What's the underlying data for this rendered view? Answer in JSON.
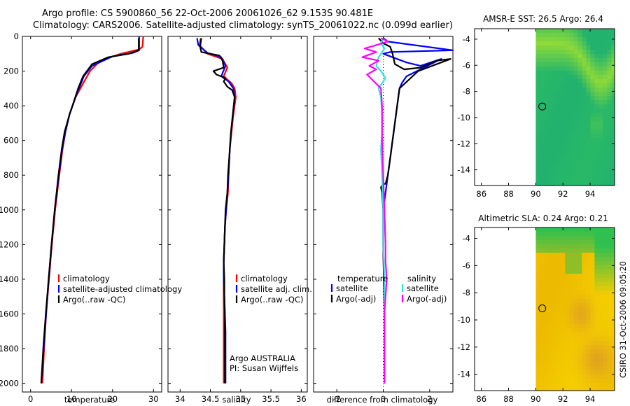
{
  "header": {
    "line1": "Argo profile: CS 5900860_56 22-Oct-2006 20061026_62 9.153S 90.481E",
    "line2": "Climatology: CARS2006. Satellite-adjusted climatology: synTS_20061022.nc (0.099d earlier)"
  },
  "colors": {
    "red": "#ff0000",
    "blue": "#0000ff",
    "black": "#000000",
    "cyan": "#33e0e0",
    "magenta": "#ff00ff"
  },
  "chart_data": [
    {
      "type": "line",
      "panel": "temperature",
      "xlabel": "temperature",
      "ylabel": "",
      "xlim": [
        -2,
        32
      ],
      "ylim": [
        2050,
        0
      ],
      "xticks": [
        0,
        10,
        20,
        30
      ],
      "yticks": [
        0,
        200,
        400,
        600,
        800,
        1000,
        1200,
        1400,
        1600,
        1800,
        2000
      ],
      "series": [
        {
          "name": "climatology",
          "color": "red",
          "points": [
            [
              27.5,
              0
            ],
            [
              27.3,
              60
            ],
            [
              26.5,
              75
            ],
            [
              22,
              100
            ],
            [
              17,
              140
            ],
            [
              14.5,
              200
            ],
            [
              12.6,
              280
            ],
            [
              11,
              350
            ],
            [
              9.5,
              450
            ],
            [
              8.5,
              550
            ],
            [
              7.8,
              650
            ],
            [
              7,
              800
            ],
            [
              6,
              1000
            ],
            [
              5.2,
              1200
            ],
            [
              4.5,
              1400
            ],
            [
              3.8,
              1600
            ],
            [
              3.3,
              1800
            ],
            [
              2.9,
              2000
            ]
          ]
        },
        {
          "name": "satellite-adjusted climatology",
          "color": "blue",
          "points": [
            [
              26.5,
              0
            ],
            [
              26.5,
              80
            ],
            [
              25,
              95
            ],
            [
              20,
              115
            ],
            [
              15,
              170
            ],
            [
              13,
              230
            ],
            [
              11.8,
              300
            ],
            [
              10.5,
              380
            ],
            [
              9.5,
              450
            ],
            [
              8.5,
              550
            ],
            [
              7.7,
              650
            ],
            [
              6.9,
              800
            ],
            [
              5.9,
              1000
            ],
            [
              5.1,
              1200
            ],
            [
              4.4,
              1400
            ],
            [
              3.8,
              1600
            ],
            [
              3.2,
              1800
            ],
            [
              2.6,
              2000
            ]
          ]
        },
        {
          "name": "Argo(..raw -QC)",
          "color": "black",
          "points": [
            [
              26.4,
              10
            ],
            [
              26.4,
              80
            ],
            [
              24,
              100
            ],
            [
              19,
              120
            ],
            [
              15,
              160
            ],
            [
              12.8,
              230
            ],
            [
              11.6,
              300
            ],
            [
              10.5,
              380
            ],
            [
              9.5,
              450
            ],
            [
              8.3,
              550
            ],
            [
              7.6,
              650
            ],
            [
              6.8,
              800
            ],
            [
              5.9,
              1000
            ],
            [
              5.1,
              1200
            ],
            [
              4.4,
              1400
            ],
            [
              3.7,
              1600
            ],
            [
              3.1,
              1800
            ],
            [
              2.6,
              2000
            ]
          ]
        }
      ],
      "legend": [
        {
          "label": "climatology",
          "color": "red"
        },
        {
          "label": "satellite-adjusted climatology",
          "color": "blue"
        },
        {
          "label": "Argo(..raw -QC)",
          "color": "black"
        }
      ]
    },
    {
      "type": "line",
      "panel": "salinity",
      "xlabel": "salinity",
      "xlim": [
        33.8,
        36.1
      ],
      "ylim": [
        2050,
        0
      ],
      "xticks": [
        34,
        34.5,
        35,
        35.5,
        36
      ],
      "series": [
        {
          "name": "climatology",
          "color": "red",
          "points": [
            [
              34.34,
              10
            ],
            [
              34.32,
              50
            ],
            [
              34.45,
              100
            ],
            [
              34.7,
              130
            ],
            [
              34.78,
              180
            ],
            [
              34.72,
              230
            ],
            [
              34.85,
              270
            ],
            [
              34.9,
              300
            ],
            [
              34.92,
              350
            ],
            [
              34.88,
              450
            ],
            [
              34.85,
              550
            ],
            [
              34.82,
              650
            ],
            [
              34.8,
              800
            ],
            [
              34.79,
              900
            ],
            [
              34.76,
              1000
            ],
            [
              34.74,
              1100
            ],
            [
              34.73,
              1200
            ],
            [
              34.72,
              1300
            ],
            [
              34.72,
              1400
            ],
            [
              34.72,
              1500
            ],
            [
              34.72,
              1700
            ],
            [
              34.72,
              1900
            ],
            [
              34.72,
              2000
            ]
          ]
        },
        {
          "name": "satellite adj. clim.",
          "color": "blue",
          "points": [
            [
              34.28,
              10
            ],
            [
              34.3,
              50
            ],
            [
              34.45,
              95
            ],
            [
              34.68,
              120
            ],
            [
              34.75,
              170
            ],
            [
              34.68,
              230
            ],
            [
              34.8,
              260
            ],
            [
              34.88,
              300
            ],
            [
              34.9,
              350
            ],
            [
              34.87,
              450
            ],
            [
              34.84,
              550
            ],
            [
              34.82,
              650
            ],
            [
              34.8,
              800
            ],
            [
              34.78,
              900
            ],
            [
              34.76,
              1000
            ],
            [
              34.74,
              1100
            ],
            [
              34.73,
              1200
            ],
            [
              34.72,
              1300
            ],
            [
              34.72,
              1400
            ],
            [
              34.73,
              1500
            ],
            [
              34.74,
              1600
            ],
            [
              34.75,
              1700
            ],
            [
              34.75,
              1800
            ],
            [
              34.75,
              1900
            ],
            [
              34.75,
              2000
            ]
          ]
        },
        {
          "name": "Argo(..raw -QC)",
          "color": "black",
          "points": [
            [
              34.35,
              10
            ],
            [
              34.33,
              60
            ],
            [
              34.35,
              90
            ],
            [
              34.65,
              110
            ],
            [
              34.7,
              140
            ],
            [
              34.72,
              180
            ],
            [
              34.55,
              200
            ],
            [
              34.6,
              220
            ],
            [
              34.75,
              240
            ],
            [
              34.72,
              260
            ],
            [
              34.78,
              290
            ],
            [
              34.86,
              310
            ],
            [
              34.9,
              350
            ],
            [
              34.87,
              450
            ],
            [
              34.84,
              550
            ],
            [
              34.82,
              650
            ],
            [
              34.79,
              800
            ],
            [
              34.78,
              900
            ],
            [
              34.75,
              1000
            ],
            [
              34.74,
              1100
            ],
            [
              34.73,
              1200
            ],
            [
              34.72,
              1300
            ],
            [
              34.73,
              1400
            ],
            [
              34.73,
              1500
            ],
            [
              34.74,
              1600
            ],
            [
              34.74,
              1800
            ],
            [
              34.74,
              2000
            ]
          ]
        }
      ],
      "legend": [
        {
          "label": "climatology",
          "color": "red"
        },
        {
          "label": "satellite adj. clim.",
          "color": "blue"
        },
        {
          "label": "Argo(..raw -QC)",
          "color": "black"
        }
      ],
      "annotation": [
        "Argo AUSTRALIA",
        "PI: Susan Wijffels"
      ]
    },
    {
      "type": "line",
      "panel": "difference",
      "xlabel": "difference from climatology",
      "xlim": [
        -3,
        3
      ],
      "ylim": [
        2050,
        0
      ],
      "xticks": [
        -2,
        0,
        2
      ],
      "series": [
        {
          "name": "temperature satellite",
          "color": "blue",
          "points": [
            [
              0,
              10
            ],
            [
              0.2,
              30
            ],
            [
              3,
              80
            ],
            [
              0.3,
              90
            ],
            [
              0,
              100
            ],
            [
              1,
              150
            ],
            [
              1.6,
              170
            ],
            [
              2.5,
              130
            ],
            [
              2.2,
              150
            ],
            [
              1,
              230
            ],
            [
              0.8,
              270
            ],
            [
              0.7,
              300
            ],
            [
              0.6,
              400
            ],
            [
              0.5,
              500
            ],
            [
              0.4,
              600
            ],
            [
              0.3,
              700
            ],
            [
              0.2,
              800
            ],
            [
              0.1,
              900
            ],
            [
              0,
              1000
            ],
            [
              0,
              1200
            ],
            [
              0.05,
              1600
            ],
            [
              0.05,
              2000
            ]
          ]
        },
        {
          "name": "temperature Argo(-adj)",
          "color": "black",
          "points": [
            [
              -0.2,
              10
            ],
            [
              0,
              40
            ],
            [
              0.3,
              60
            ],
            [
              0.4,
              100
            ],
            [
              0.5,
              160
            ],
            [
              0.9,
              190
            ],
            [
              1.6,
              180
            ],
            [
              2.3,
              140
            ],
            [
              2.9,
              130
            ],
            [
              1.5,
              200
            ],
            [
              1.1,
              250
            ],
            [
              0.7,
              300
            ],
            [
              0.6,
              400
            ],
            [
              0.5,
              500
            ],
            [
              0.4,
              600
            ],
            [
              0.3,
              700
            ],
            [
              0.2,
              800
            ],
            [
              0.1,
              850
            ],
            [
              0,
              850
            ],
            [
              -0.1,
              870
            ],
            [
              -0.05,
              900
            ],
            [
              0,
              1000
            ],
            [
              0,
              1200
            ],
            [
              0.05,
              1600
            ],
            [
              0.05,
              2000
            ]
          ]
        },
        {
          "name": "salinity satellite",
          "color": "cyan",
          "points": [
            [
              0,
              10
            ],
            [
              -0.1,
              40
            ],
            [
              0.05,
              70
            ],
            [
              -0.2,
              120
            ],
            [
              -0.3,
              170
            ],
            [
              -0.1,
              200
            ],
            [
              0.1,
              240
            ],
            [
              -0.2,
              300
            ],
            [
              -0.1,
              350
            ],
            [
              -0.05,
              450
            ],
            [
              -0.05,
              550
            ],
            [
              -0.1,
              650
            ],
            [
              -0.05,
              800
            ],
            [
              0,
              1000
            ],
            [
              0,
              1200
            ],
            [
              0.05,
              1400
            ],
            [
              0.05,
              1600
            ],
            [
              0.05,
              1800
            ],
            [
              0.05,
              2000
            ]
          ]
        },
        {
          "name": "salinity Argo(-adj)",
          "color": "magenta",
          "points": [
            [
              -0.1,
              10
            ],
            [
              0.2,
              30
            ],
            [
              -0.8,
              70
            ],
            [
              -0.3,
              90
            ],
            [
              -0.9,
              120
            ],
            [
              -0.2,
              140
            ],
            [
              -0.6,
              170
            ],
            [
              -0.3,
              190
            ],
            [
              -0.7,
              220
            ],
            [
              -0.4,
              260
            ],
            [
              -0.1,
              300
            ],
            [
              -0.05,
              400
            ],
            [
              -0.05,
              500
            ],
            [
              -0.05,
              600
            ],
            [
              0,
              800
            ],
            [
              0.05,
              1000
            ],
            [
              0.1,
              1200
            ],
            [
              0.1,
              1300
            ],
            [
              0.15,
              1400
            ],
            [
              0.1,
              1500
            ],
            [
              0.05,
              1600
            ],
            [
              0.05,
              1800
            ],
            [
              0.05,
              2000
            ]
          ]
        }
      ],
      "legend_headers": [
        "temperature",
        "salinity"
      ],
      "legend": [
        {
          "label": "satellite",
          "color": "blue",
          "col": 0
        },
        {
          "label": "Argo(-adj)",
          "color": "black",
          "col": 0
        },
        {
          "label": "satellite",
          "color": "cyan",
          "col": 1
        },
        {
          "label": "Argo(-adj)",
          "color": "magenta",
          "col": 1
        }
      ]
    },
    {
      "type": "heatmap",
      "panel": "sst",
      "title": "AMSR-E SST: 26.5 Argo: 26.4",
      "xlim": [
        85.5,
        95.8
      ],
      "ylim": [
        -15.2,
        -3.2
      ],
      "xticks": [
        86,
        88,
        90,
        92,
        94
      ],
      "yticks": [
        -4,
        -6,
        -8,
        -10,
        -12,
        -14
      ],
      "data_xmin": 90,
      "marker": [
        90.48,
        -9.15
      ]
    },
    {
      "type": "heatmap",
      "panel": "sla",
      "title": "Altimetric SLA: 0.24 Argo: 0.21",
      "xlim": [
        85.5,
        95.8
      ],
      "ylim": [
        -15.2,
        -3.2
      ],
      "xticks": [
        86,
        88,
        90,
        92,
        94
      ],
      "yticks": [
        -4,
        -6,
        -8,
        -10,
        -12,
        -14
      ],
      "data_xmin": 90,
      "marker": [
        90.48,
        -9.15
      ]
    }
  ],
  "footer_stamp": "CSIRO 31-Oct-2006 09:05:20"
}
